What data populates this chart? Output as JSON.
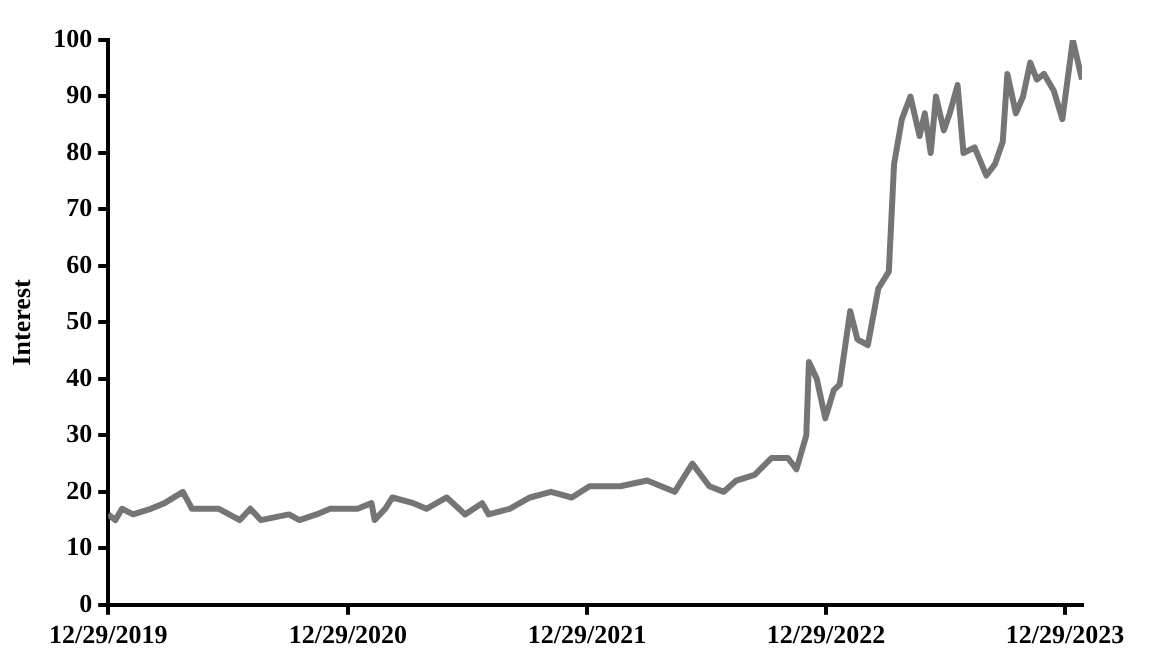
{
  "chart_data": {
    "type": "line",
    "ylabel": "Interest",
    "xlim": [
      "2019-12-29",
      "2024-01-24"
    ],
    "xticks": [
      {
        "value": "2019-12-29",
        "label": "12/29/2019"
      },
      {
        "value": "2020-12-29",
        "label": "12/29/2020"
      },
      {
        "value": "2021-12-29",
        "label": "12/29/2021"
      },
      {
        "value": "2022-12-29",
        "label": "12/29/2022"
      },
      {
        "value": "2023-12-29",
        "label": "12/29/2023"
      }
    ],
    "ylim": [
      0,
      100
    ],
    "yticks": [
      0,
      10,
      20,
      30,
      40,
      50,
      60,
      70,
      80,
      90,
      100
    ],
    "grid": false,
    "legend": false,
    "marker": "none",
    "line_style": "solid",
    "series": [
      {
        "color": "#777474",
        "x": [
          "2019-12-29",
          "2020-01-09",
          "2020-01-19",
          "2020-02-05",
          "2020-03-03",
          "2020-03-24",
          "2020-04-21",
          "2020-05-05",
          "2020-06-15",
          "2020-07-17",
          "2020-08-02",
          "2020-08-18",
          "2020-09-30",
          "2020-10-16",
          "2020-11-11",
          "2020-12-02",
          "2021-01-13",
          "2021-02-03",
          "2021-02-08",
          "2021-02-24",
          "2021-03-07",
          "2021-04-08",
          "2021-04-28",
          "2021-05-29",
          "2021-06-26",
          "2021-07-22",
          "2021-08-01",
          "2021-09-02",
          "2021-10-03",
          "2021-11-04",
          "2021-12-06",
          "2022-01-02",
          "2022-02-18",
          "2022-03-31",
          "2022-05-12",
          "2022-06-08",
          "2022-07-04",
          "2022-07-26",
          "2022-08-14",
          "2022-09-11",
          "2022-10-07",
          "2022-11-01",
          "2022-11-14",
          "2022-11-29",
          "2022-12-03",
          "2022-12-15",
          "2022-12-28",
          "2023-01-10",
          "2023-01-19",
          "2023-02-04",
          "2023-02-15",
          "2023-03-03",
          "2023-03-19",
          "2023-04-04",
          "2023-04-12",
          "2023-04-24",
          "2023-05-07",
          "2023-05-21",
          "2023-05-29",
          "2023-06-07",
          "2023-06-15",
          "2023-06-27",
          "2023-07-06",
          "2023-07-18",
          "2023-07-27",
          "2023-08-13",
          "2023-08-31",
          "2023-09-13",
          "2023-09-25",
          "2023-10-02",
          "2023-10-15",
          "2023-10-26",
          "2023-11-06",
          "2023-11-16",
          "2023-11-27",
          "2023-12-12",
          "2023-12-25",
          "2024-01-10",
          "2024-01-24"
        ],
        "values": [
          16,
          15,
          17,
          16,
          17,
          18,
          20,
          17,
          17,
          15,
          17,
          15,
          16,
          15,
          16,
          17,
          17,
          18,
          15,
          17,
          19,
          18,
          17,
          19,
          16,
          18,
          16,
          17,
          19,
          20,
          19,
          21,
          21,
          22,
          20,
          25,
          21,
          20,
          22,
          23,
          26,
          26,
          24,
          30,
          43,
          40,
          33,
          38,
          39,
          52,
          47,
          46,
          56,
          59,
          78,
          86,
          90,
          83,
          87,
          80,
          90,
          84,
          87,
          92,
          80,
          81,
          76,
          78,
          82,
          94,
          87,
          90,
          96,
          93,
          94,
          91,
          86,
          100,
          93
        ]
      }
    ]
  }
}
